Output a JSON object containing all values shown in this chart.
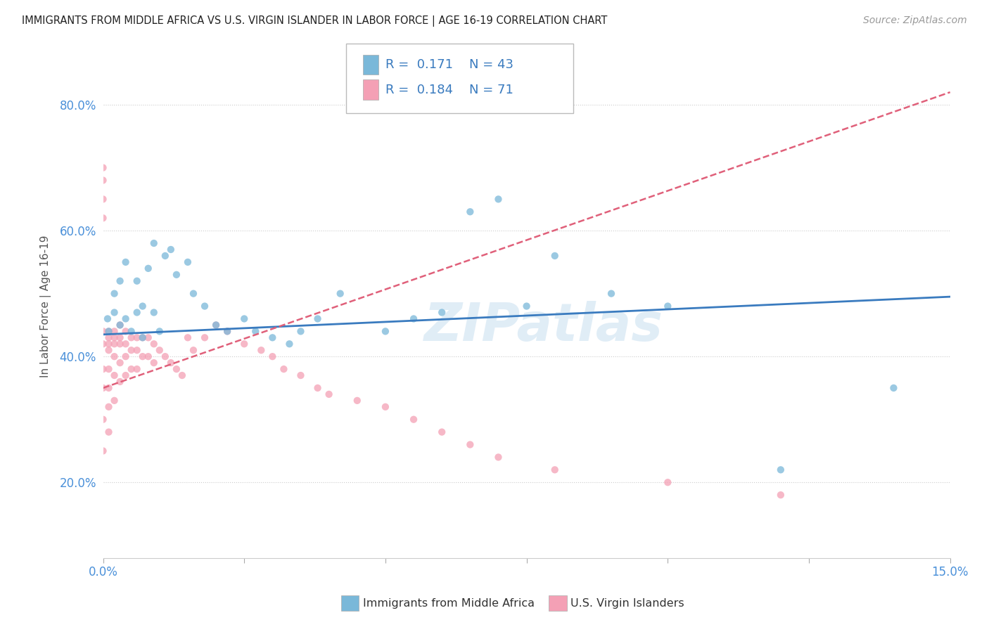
{
  "title": "IMMIGRANTS FROM MIDDLE AFRICA VS U.S. VIRGIN ISLANDER IN LABOR FORCE | AGE 16-19 CORRELATION CHART",
  "source": "Source: ZipAtlas.com",
  "ylabel": "In Labor Force | Age 16-19",
  "xlim": [
    0.0,
    0.15
  ],
  "ylim": [
    0.08,
    0.88
  ],
  "yticks": [
    0.2,
    0.4,
    0.6,
    0.8
  ],
  "yticklabels": [
    "20.0%",
    "40.0%",
    "60.0%",
    "80.0%"
  ],
  "watermark": "ZIPatlas",
  "legend_R1": "0.171",
  "legend_N1": "43",
  "legend_R2": "0.184",
  "legend_N2": "71",
  "color_blue": "#7ab8d9",
  "color_pink": "#f4a0b5",
  "color_blue_line": "#3a7bbf",
  "color_pink_line": "#e0607a",
  "color_dashed": "#ccaaaa",
  "blue_x": [
    0.0008,
    0.001,
    0.002,
    0.002,
    0.003,
    0.003,
    0.004,
    0.004,
    0.005,
    0.006,
    0.006,
    0.007,
    0.007,
    0.008,
    0.009,
    0.009,
    0.01,
    0.011,
    0.012,
    0.013,
    0.015,
    0.016,
    0.018,
    0.02,
    0.022,
    0.025,
    0.027,
    0.03,
    0.033,
    0.035,
    0.038,
    0.042,
    0.05,
    0.055,
    0.06,
    0.065,
    0.07,
    0.075,
    0.08,
    0.09,
    0.1,
    0.12,
    0.14
  ],
  "blue_y": [
    0.46,
    0.44,
    0.5,
    0.47,
    0.45,
    0.52,
    0.46,
    0.55,
    0.44,
    0.47,
    0.52,
    0.48,
    0.43,
    0.54,
    0.58,
    0.47,
    0.44,
    0.56,
    0.57,
    0.53,
    0.55,
    0.5,
    0.48,
    0.45,
    0.44,
    0.46,
    0.44,
    0.43,
    0.42,
    0.44,
    0.46,
    0.5,
    0.44,
    0.46,
    0.47,
    0.63,
    0.65,
    0.48,
    0.56,
    0.5,
    0.48,
    0.22,
    0.35
  ],
  "pink_x": [
    0.0,
    0.0,
    0.0,
    0.0,
    0.0,
    0.0,
    0.0,
    0.0,
    0.0,
    0.0,
    0.001,
    0.001,
    0.001,
    0.001,
    0.001,
    0.001,
    0.001,
    0.001,
    0.002,
    0.002,
    0.002,
    0.002,
    0.002,
    0.002,
    0.003,
    0.003,
    0.003,
    0.003,
    0.003,
    0.004,
    0.004,
    0.004,
    0.004,
    0.005,
    0.005,
    0.005,
    0.006,
    0.006,
    0.006,
    0.007,
    0.007,
    0.008,
    0.008,
    0.009,
    0.009,
    0.01,
    0.011,
    0.012,
    0.013,
    0.014,
    0.015,
    0.016,
    0.018,
    0.02,
    0.022,
    0.025,
    0.028,
    0.03,
    0.032,
    0.035,
    0.038,
    0.04,
    0.045,
    0.05,
    0.055,
    0.06,
    0.065,
    0.07,
    0.08,
    0.1,
    0.12
  ],
  "pink_y": [
    0.7,
    0.68,
    0.65,
    0.62,
    0.44,
    0.42,
    0.38,
    0.35,
    0.3,
    0.25,
    0.44,
    0.43,
    0.42,
    0.41,
    0.38,
    0.35,
    0.32,
    0.28,
    0.44,
    0.43,
    0.42,
    0.4,
    0.37,
    0.33,
    0.45,
    0.43,
    0.42,
    0.39,
    0.36,
    0.44,
    0.42,
    0.4,
    0.37,
    0.43,
    0.41,
    0.38,
    0.43,
    0.41,
    0.38,
    0.43,
    0.4,
    0.43,
    0.4,
    0.42,
    0.39,
    0.41,
    0.4,
    0.39,
    0.38,
    0.37,
    0.43,
    0.41,
    0.43,
    0.45,
    0.44,
    0.42,
    0.41,
    0.4,
    0.38,
    0.37,
    0.35,
    0.34,
    0.33,
    0.32,
    0.3,
    0.28,
    0.26,
    0.24,
    0.22,
    0.2,
    0.18
  ]
}
